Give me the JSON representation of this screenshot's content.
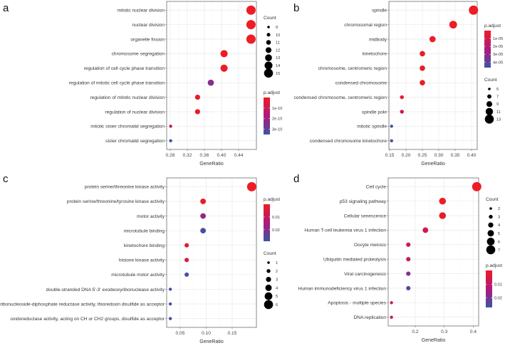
{
  "chart_data": [
    {
      "type": "scatter",
      "panel": "a",
      "xlabel": "GeneRatio",
      "xlim": [
        0.2717,
        0.4817
      ],
      "xticks": [
        0.28,
        0.32,
        0.36,
        0.4,
        0.44
      ],
      "xtick_labels": [
        "0.28",
        "0.32",
        "0.36",
        "0.40",
        "0.44"
      ],
      "terms": [
        "mitotic nuclear division",
        "nuclear division",
        "organelle fission",
        "chromosome segregation",
        "regulation of cell cycle phase transition",
        "regulation of mitotic cell cycle phase transition",
        "regulation of mitotic nuclear division",
        "regulation of nuclear division",
        "mitotic sister chromatid segregation",
        "sister chromatid segregation"
      ],
      "gene_ratio": [
        0.469,
        0.469,
        0.469,
        0.406,
        0.406,
        0.375,
        0.344,
        0.344,
        0.281,
        0.281
      ],
      "count": [
        15,
        15,
        15,
        13,
        13,
        12,
        11,
        11,
        9,
        9
      ],
      "p_adjust": [
        1e-12,
        1e-12,
        1e-12,
        2e-12,
        5e-12,
        2.4e-10,
        1e-11,
        1e-11,
        1.2e-10,
        3.4e-10
      ],
      "count_legend_title": "Count",
      "count_legend": [
        "9",
        "10",
        "11",
        "12",
        "13",
        "14",
        "15"
      ],
      "color_legend_title": "p.adjust",
      "color_range": [
        0,
        3.5e-10
      ],
      "color_legend_ticks": [
        1e-10,
        2e-10,
        3e-10
      ],
      "color_legend_labels": [
        "1e-10",
        "2e-10",
        "3e-10"
      ],
      "legend_order": "count-first",
      "legend_placement": "right"
    },
    {
      "type": "scatter",
      "panel": "b",
      "xlabel": "GeneRatio",
      "xlim": [
        0.1478,
        0.4174
      ],
      "xticks": [
        0.15,
        0.2,
        0.25,
        0.3,
        0.35,
        0.4
      ],
      "xtick_labels": [
        "0.15",
        "0.20",
        "0.25",
        "0.30",
        "0.35",
        "0.40"
      ],
      "terms": [
        "spindle",
        "chromosomal region",
        "midbody",
        "kinetochore",
        "chromosome, centromeric region",
        "condensed chromosome",
        "condensed chromosome, centromeric region",
        "spindle pole",
        "mitotic spindle",
        "condensed chromosome kinetochore"
      ],
      "gene_ratio": [
        0.406,
        0.344,
        0.281,
        0.25,
        0.25,
        0.25,
        0.1875,
        0.1875,
        0.156,
        0.156
      ],
      "count": [
        13,
        11,
        9,
        8,
        8,
        8,
        6,
        6,
        5,
        5
      ],
      "p_adjust": [
        1e-07,
        2e-07,
        5e-07,
        1e-06,
        1e-06,
        1.5e-06,
        3e-06,
        1.6e-05,
        4.6e-05,
        4.6e-05
      ],
      "count_legend_title": "Count",
      "count_legend": [
        "5",
        "7",
        "9",
        "11",
        "13"
      ],
      "color_legend_title": "p.adjust",
      "color_range": [
        0,
        4.7e-05
      ],
      "color_legend_ticks": [
        1e-05,
        2e-05,
        3e-05,
        4e-05
      ],
      "color_legend_labels": [
        "1e-05",
        "2e-05",
        "3e-05",
        "4e-05"
      ],
      "legend_order": "color-first",
      "legend_placement": "right"
    },
    {
      "type": "scatter",
      "panel": "c",
      "xlabel": "GeneRatio",
      "xlim": [
        0.024,
        0.1966
      ],
      "xticks": [
        0.05,
        0.1,
        0.15
      ],
      "xtick_labels": [
        "0.05",
        "0.10",
        "0.15"
      ],
      "terms": [
        "protein serine/threonine kinase activity",
        "protein serine/threonine/tyrosine kinase activity",
        "motor activity",
        "microtubule binding",
        "kinetochore binding",
        "histone kinase activity",
        "microtubule motor activity",
        "double-stranded DNA 5'-3' exodeoxyribonuclease activity",
        "ribonucleoside-diphosphate reductase activity, thioredoxin disulfide as acceptor",
        "oxidoreductase activity, acting on CH or CH2 groups, disulfide as acceptor"
      ],
      "gene_ratio": [
        0.1875,
        0.094,
        0.094,
        0.094,
        0.0625,
        0.0625,
        0.0625,
        0.031,
        0.031,
        0.031
      ],
      "count": [
        6,
        3,
        3,
        3,
        2,
        2,
        2,
        1,
        1,
        1
      ],
      "p_adjust": [
        0.0001,
        0.001,
        0.018,
        0.027,
        0.002,
        0.005,
        0.027,
        0.028,
        0.028,
        0.028
      ],
      "count_legend_title": "Count",
      "count_legend": [
        "1",
        "2",
        "3",
        "4",
        "5",
        "6"
      ],
      "color_legend_title": "p.adjust",
      "color_range": [
        0,
        0.029
      ],
      "color_legend_ticks": [
        0.01,
        0.02
      ],
      "color_legend_labels": [
        "0.01",
        "0.02"
      ],
      "legend_order": "color-first",
      "legend_placement": "right"
    },
    {
      "type": "scatter",
      "panel": "d",
      "xlabel": "GeneRatio",
      "xlim": [
        0.1066,
        0.4186
      ],
      "xticks": [
        0.2,
        0.3,
        0.4
      ],
      "xtick_labels": [
        "0.2",
        "0.3",
        "0.4"
      ],
      "terms": [
        "Cell cycle",
        "p53 signaling pathway",
        "Cellular senescence",
        "Human T-cell leukemia virus 1 infection",
        "Oocyte meiosis",
        "Ubiquitin mediated proteolysis",
        "Viral carcinogenesis",
        "Human immunodeficiency virus 1 infection",
        "Apoptosis - multiple species",
        "DNA replication"
      ],
      "gene_ratio": [
        0.412,
        0.294,
        0.294,
        0.235,
        0.176,
        0.176,
        0.176,
        0.176,
        0.118,
        0.118
      ],
      "count": [
        7,
        5,
        5,
        4,
        3,
        3,
        3,
        3,
        2,
        2
      ],
      "p_adjust": [
        0.0001,
        0.0005,
        0.001,
        0.006,
        0.009,
        0.009,
        0.019,
        0.025,
        0.008,
        0.008
      ],
      "count_legend_title": "Count",
      "count_legend": [
        "2",
        "3",
        "4",
        "5",
        "6",
        "7"
      ],
      "color_legend_title": "p.adjust",
      "color_range": [
        0,
        0.027
      ],
      "color_legend_ticks": [
        0.01,
        0.02
      ],
      "color_legend_labels": [
        "0.01",
        "0.02"
      ],
      "legend_order": "count-first",
      "legend_placement": "right"
    }
  ],
  "colors": {
    "low": "#e8202a",
    "mid": "#b0187a",
    "high": "#3a50a2",
    "grid": "#ebebeb",
    "border": "#7f7f7f"
  }
}
